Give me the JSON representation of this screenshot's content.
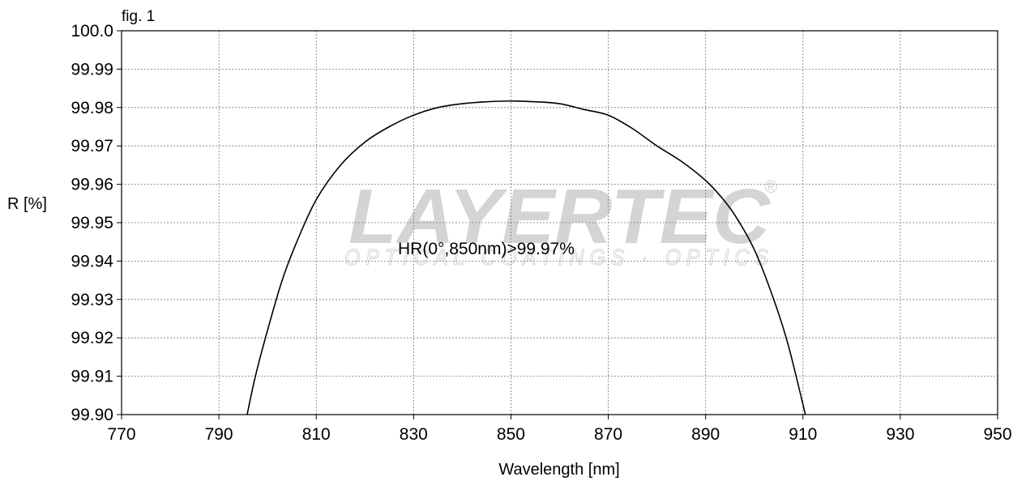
{
  "figure_label": "fig. 1",
  "watermark": {
    "brand": "LAYERTEC",
    "tagline": "OPTICAL COATINGS · OPTICS",
    "registered": "®"
  },
  "chart_data": {
    "type": "line",
    "title": "",
    "xlabel": "Wavelength [nm]",
    "ylabel": "R [%]",
    "xlim": [
      770,
      950
    ],
    "ylim": [
      99.9,
      100.0
    ],
    "xticks": [
      "770",
      "790",
      "810",
      "830",
      "850",
      "870",
      "890",
      "910",
      "930",
      "950"
    ],
    "yticks": [
      "100.0",
      "99.99",
      "99.98",
      "99.97",
      "99.96",
      "99.95",
      "99.94",
      "99.93",
      "99.92",
      "99.91",
      "99.90"
    ],
    "grid": true,
    "annotation": "HR(0°,850nm)>99.97%",
    "series": [
      {
        "x": [
          795.8,
          797.5,
          800,
          803,
          806,
          810,
          815,
          820,
          825,
          830,
          835,
          840,
          845,
          850,
          855,
          860,
          865,
          870,
          875,
          880,
          885,
          890,
          893,
          896,
          900,
          904,
          907,
          910.5
        ],
        "y": [
          99.9,
          99.91,
          99.922,
          99.935,
          99.945,
          99.956,
          99.965,
          99.971,
          99.975,
          99.978,
          99.98,
          99.981,
          99.9815,
          99.9817,
          99.9815,
          99.981,
          99.9795,
          99.978,
          99.9745,
          99.97,
          99.966,
          99.961,
          99.957,
          99.952,
          99.943,
          99.93,
          99.918,
          99.9
        ],
        "color": "#000000"
      }
    ]
  }
}
